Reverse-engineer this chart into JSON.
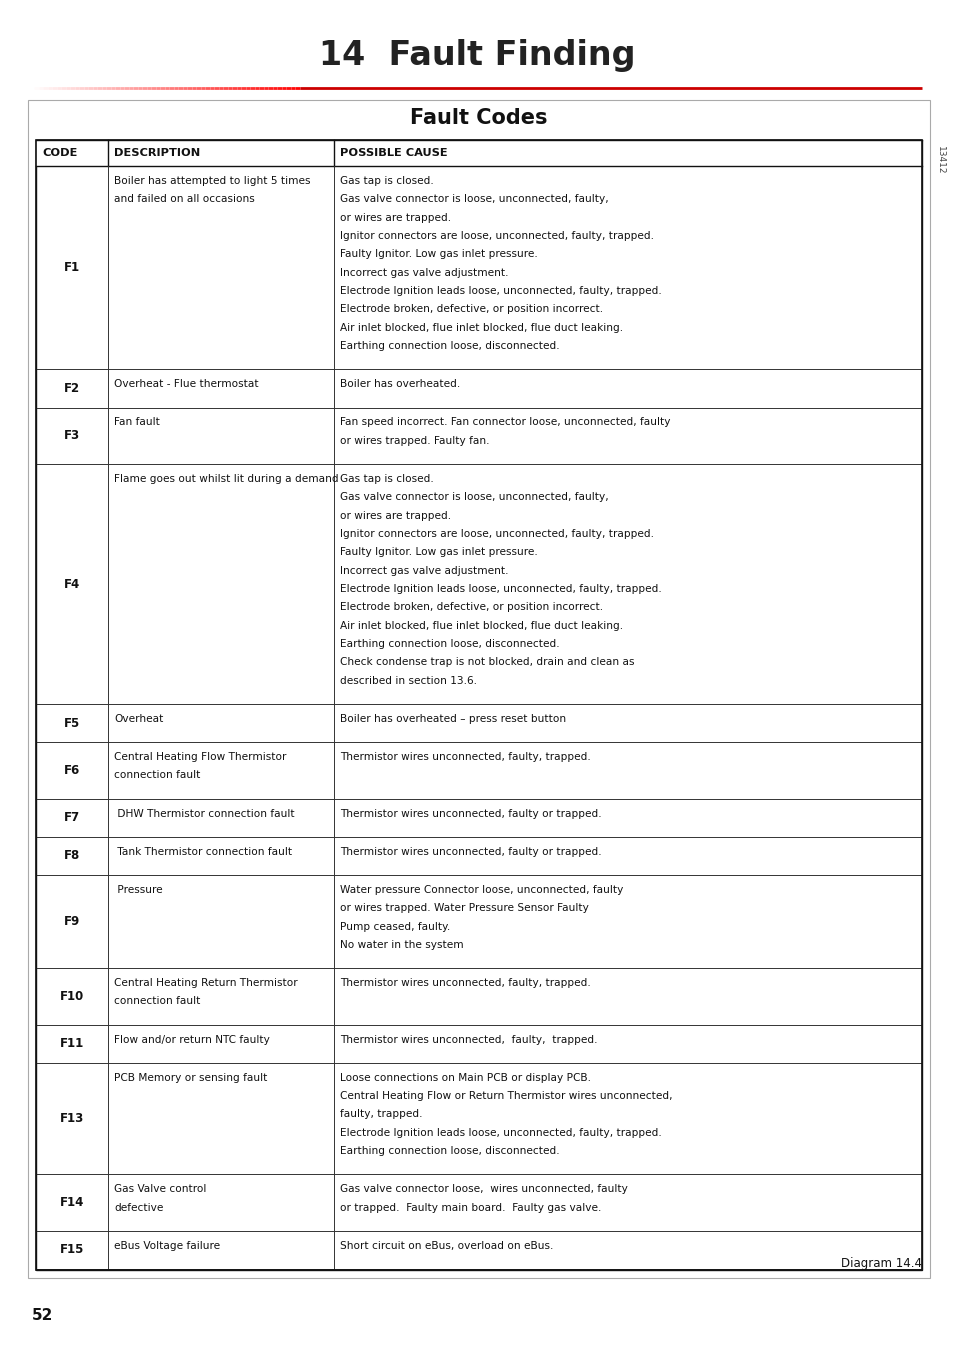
{
  "title": "14  Fault Finding",
  "table_title": "Fault Codes",
  "diagram_label": "Diagram 14.4",
  "page_number": "52",
  "side_text": "13412",
  "background_color": "#ffffff",
  "title_color": "#2d2d2d",
  "red_line_color": "#cc0000",
  "header_row": [
    "CODE",
    "DESCRIPTION",
    "POSSIBLE CAUSE"
  ],
  "rows": [
    {
      "code": "F1",
      "description": "Boiler has attempted to light 5 times\nand failed on all occasions",
      "cause": "Gas tap is closed.\nGas valve connector is loose, unconnected, faulty,\nor wires are trapped.\nIgnitor connectors are loose, unconnected, faulty, trapped.\nFaulty Ignitor. Low gas inlet pressure.\nIncorrect gas valve adjustment.\nElectrode Ignition leads loose, unconnected, faulty, trapped.\nElectrode broken, defective, or position incorrect.\nAir inlet blocked, flue inlet blocked, flue duct leaking.\nEarthing connection loose, disconnected."
    },
    {
      "code": "F2",
      "description": "Overheat - Flue thermostat",
      "cause": "Boiler has overheated."
    },
    {
      "code": "F3",
      "description": "Fan fault",
      "cause": "Fan speed incorrect. Fan connector loose, unconnected, faulty\nor wires trapped. Faulty fan."
    },
    {
      "code": "F4",
      "description": "Flame goes out whilst lit during a demand",
      "cause": "Gas tap is closed.\nGas valve connector is loose, unconnected, faulty,\nor wires are trapped.\nIgnitor connectors are loose, unconnected, faulty, trapped.\nFaulty Ignitor. Low gas inlet pressure.\nIncorrect gas valve adjustment.\nElectrode Ignition leads loose, unconnected, faulty, trapped.\nElectrode broken, defective, or position incorrect.\nAir inlet blocked, flue inlet blocked, flue duct leaking.\nEarthing connection loose, disconnected.\nCheck condense trap is not blocked, drain and clean as\ndescribed in section 13.6."
    },
    {
      "code": "F5",
      "description": "Overheat",
      "cause": "Boiler has overheated – press reset button"
    },
    {
      "code": "F6",
      "description": "Central Heating Flow Thermistor\nconnection fault",
      "cause": "Thermistor wires unconnected, faulty, trapped."
    },
    {
      "code": "F7",
      "description": " DHW Thermistor connection fault",
      "cause": "Thermistor wires unconnected, faulty or trapped."
    },
    {
      "code": "F8",
      "description": " Tank Thermistor connection fault",
      "cause": "Thermistor wires unconnected, faulty or trapped."
    },
    {
      "code": "F9",
      "description": " Pressure",
      "cause": "Water pressure Connector loose, unconnected, faulty\nor wires trapped. Water Pressure Sensor Faulty\nPump ceased, faulty.\nNo water in the system"
    },
    {
      "code": "F10",
      "description": "Central Heating Return Thermistor\nconnection fault",
      "cause": "Thermistor wires unconnected, faulty, trapped."
    },
    {
      "code": "F11",
      "description": "Flow and/or return NTC faulty",
      "cause": "Thermistor wires unconnected,  faulty,  trapped."
    },
    {
      "code": "F13",
      "description": "PCB Memory or sensing fault",
      "cause": "Loose connections on Main PCB or display PCB.\nCentral Heating Flow or Return Thermistor wires unconnected,\nfaulty, trapped.\nElectrode Ignition leads loose, unconnected, faulty, trapped.\nEarthing connection loose, disconnected."
    },
    {
      "code": "F14",
      "description": "Gas Valve control\ndefective",
      "cause": "Gas valve connector loose,  wires unconnected, faulty\nor trapped.  Faulty main board.  Faulty gas valve."
    },
    {
      "code": "F15",
      "description": "eBus Voltage failure",
      "cause": "Short circuit on eBus, overload on eBus."
    }
  ]
}
